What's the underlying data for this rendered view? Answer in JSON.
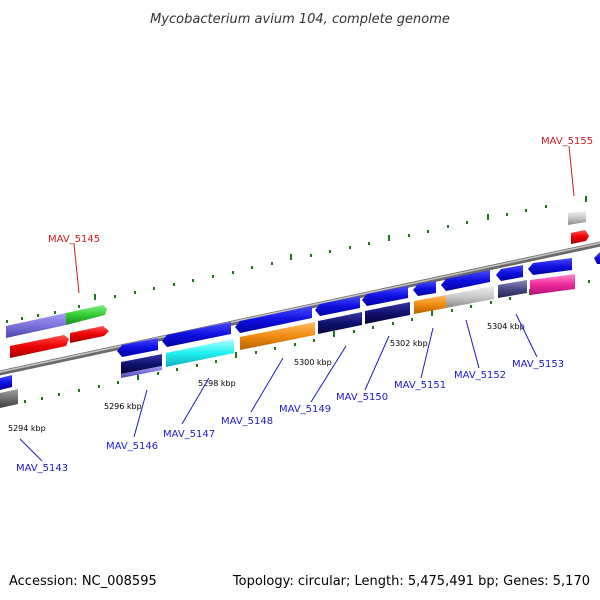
{
  "title": "Mycobacterium avium 104, complete genome",
  "footer": {
    "accession": "Accession: NC_008595",
    "summary": "Topology: circular; Length: 5,475,491 bp; Genes: 5,170"
  },
  "scale": [
    "5294 kbp",
    "5296 kbp",
    "5298 kbp",
    "5300 kbp",
    "5302 kbp",
    "5304 kbp"
  ],
  "genes": {
    "forward": [
      "MAV_5145",
      "MAV_5155"
    ],
    "reverse": [
      "MAV_5143",
      "MAV_5146",
      "MAV_5147",
      "MAV_5148",
      "MAV_5149",
      "MAV_5150",
      "MAV_5151",
      "MAV_5152",
      "MAV_5153"
    ]
  },
  "colors": {
    "forward_label": "#cc1a1a",
    "reverse_label": "#1a1acc",
    "tick": "#1a7a1a",
    "backbone": "#888888"
  }
}
